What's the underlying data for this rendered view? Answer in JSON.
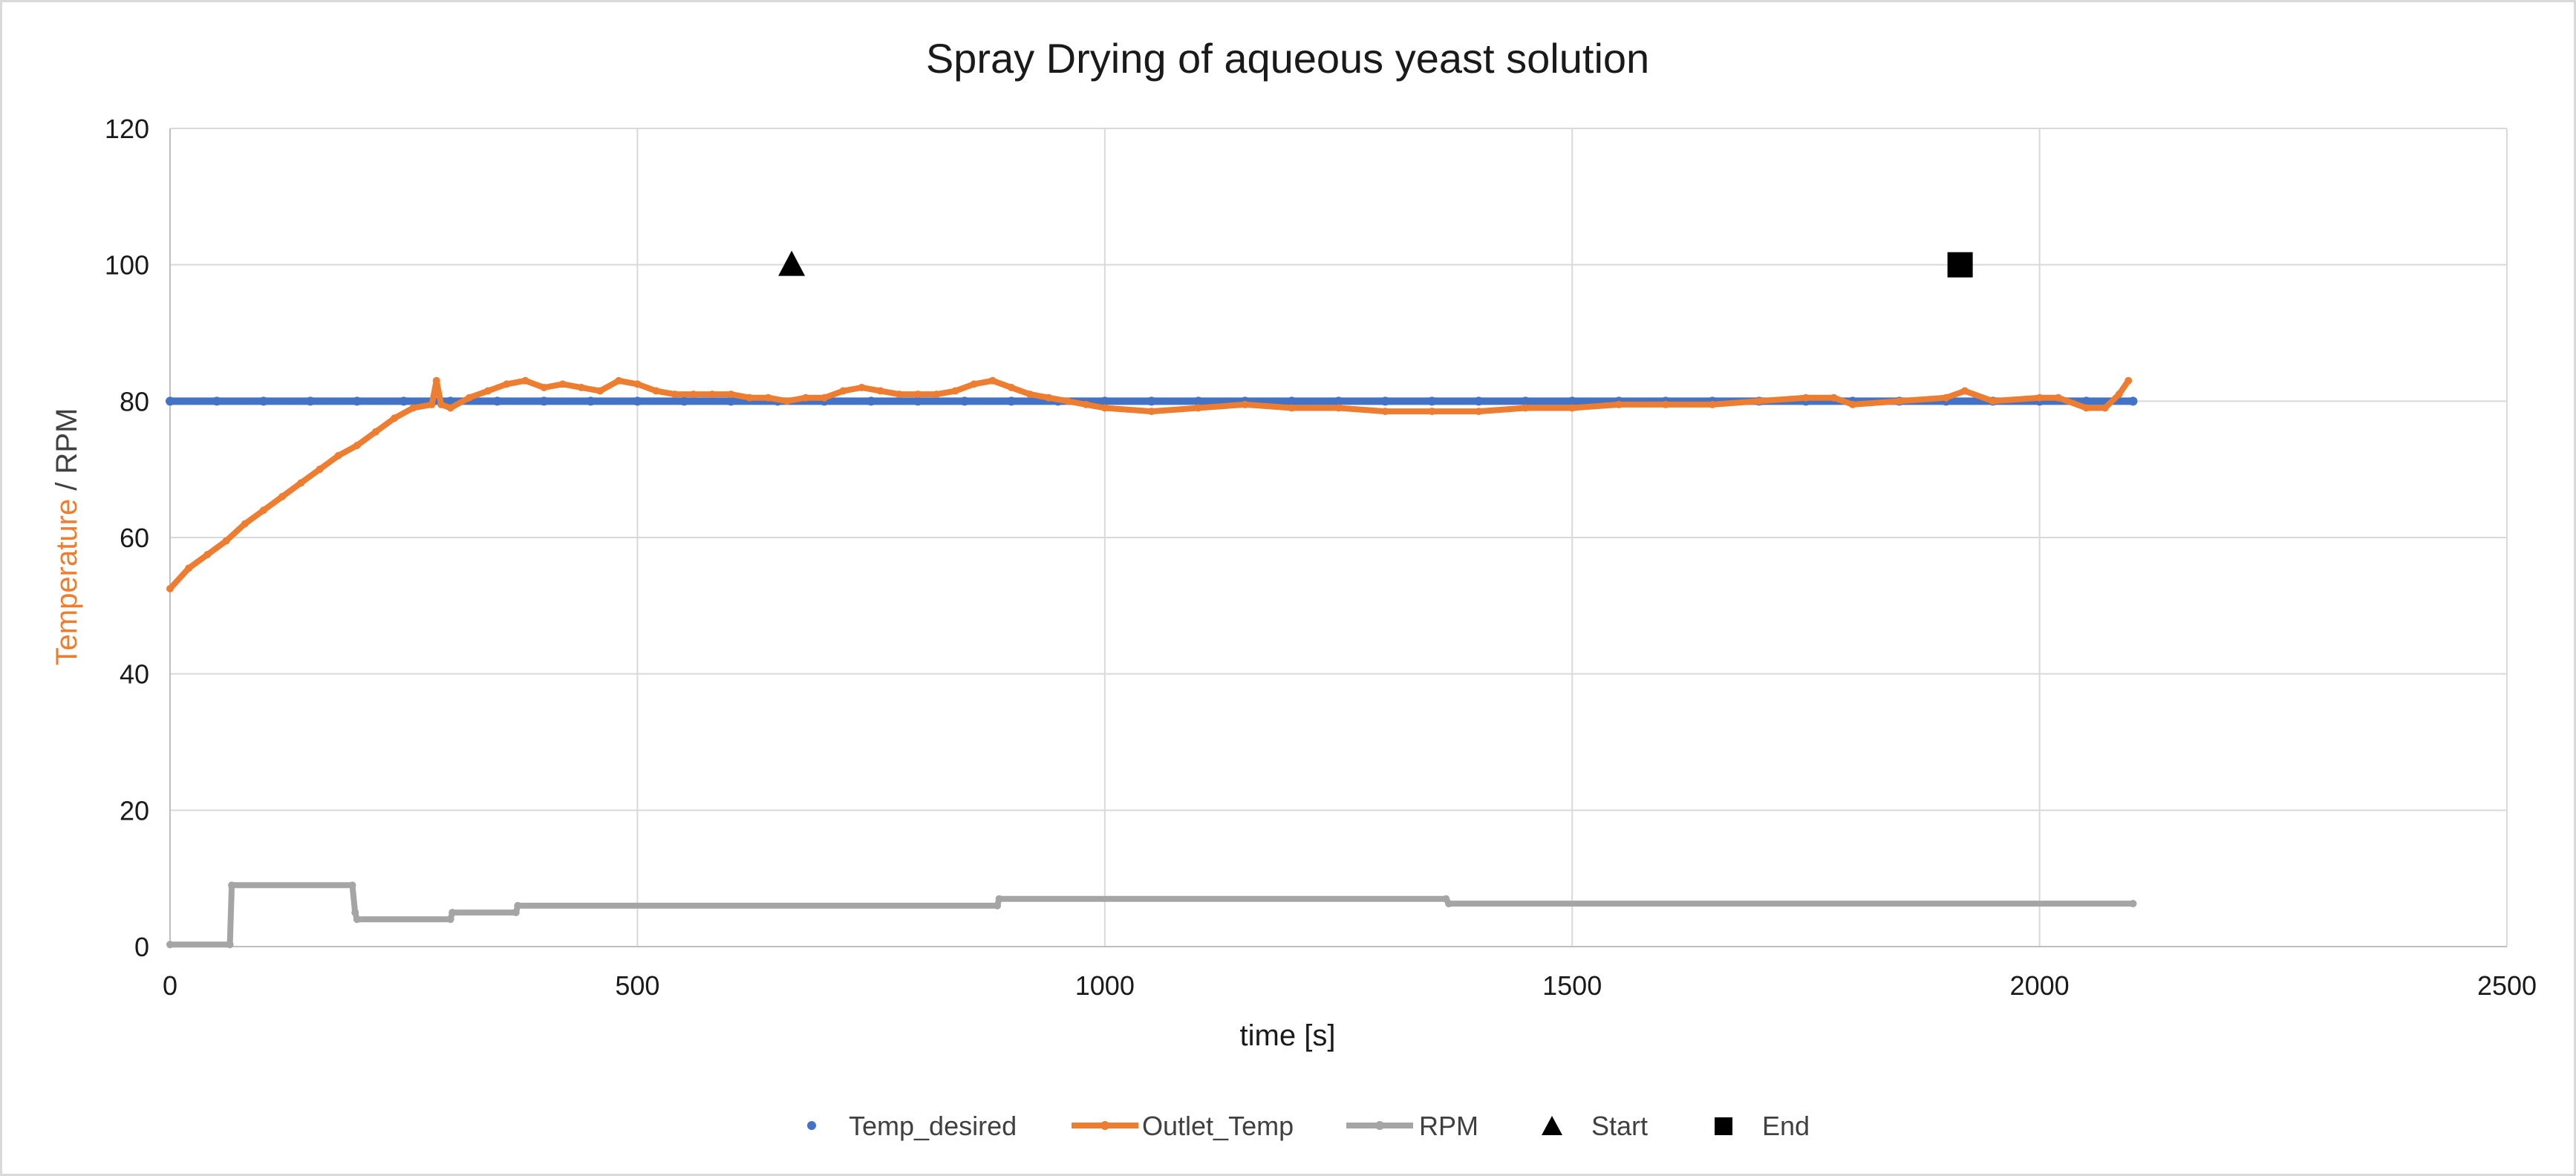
{
  "chart_data": {
    "type": "scatter",
    "title": "Spray Drying of aqueous yeast solution",
    "xlabel": "time [s]",
    "ylabel_part1": "Temperature",
    "ylabel_sep": " / ",
    "ylabel_part2": "RPM",
    "xlim": [
      0,
      2500
    ],
    "ylim": [
      0,
      120
    ],
    "x_ticks": [
      0,
      500,
      1000,
      1500,
      2000,
      2500
    ],
    "y_ticks": [
      0,
      20,
      40,
      60,
      80,
      100,
      120
    ],
    "grid": true,
    "legend_position": "bottom",
    "colors": {
      "temp_desired": "#4472C4",
      "outlet_temp": "#ED7D31",
      "rpm": "#A5A5A5",
      "markers": "#000000",
      "ylabel_temperature": "#ED7D31",
      "ylabel_rpm": "#404040"
    },
    "series": [
      {
        "name": "Temp_desired",
        "style": "dots",
        "x": [
          0,
          50,
          100,
          150,
          200,
          250,
          300,
          350,
          400,
          450,
          500,
          550,
          600,
          650,
          700,
          750,
          800,
          850,
          900,
          950,
          1000,
          1050,
          1100,
          1150,
          1200,
          1250,
          1300,
          1350,
          1400,
          1450,
          1500,
          1550,
          1600,
          1650,
          1700,
          1750,
          1800,
          1850,
          1900,
          1950,
          2000,
          2050,
          2100
        ],
        "y": [
          80,
          80,
          80,
          80,
          80,
          80,
          80,
          80,
          80,
          80,
          80,
          80,
          80,
          80,
          80,
          80,
          80,
          80,
          80,
          80,
          80,
          80,
          80,
          80,
          80,
          80,
          80,
          80,
          80,
          80,
          80,
          80,
          80,
          80,
          80,
          80,
          80,
          80,
          80,
          80,
          80,
          80,
          80
        ]
      },
      {
        "name": "Outlet_Temp",
        "style": "line-markers",
        "x": [
          0,
          20,
          40,
          60,
          80,
          100,
          120,
          140,
          160,
          180,
          200,
          220,
          240,
          260,
          280,
          285,
          290,
          300,
          320,
          340,
          360,
          380,
          400,
          420,
          440,
          460,
          480,
          500,
          520,
          540,
          560,
          580,
          600,
          620,
          640,
          660,
          680,
          700,
          720,
          740,
          760,
          780,
          800,
          820,
          840,
          860,
          880,
          900,
          920,
          940,
          960,
          980,
          1000,
          1050,
          1100,
          1150,
          1200,
          1250,
          1300,
          1350,
          1400,
          1450,
          1500,
          1550,
          1600,
          1650,
          1700,
          1750,
          1780,
          1800,
          1850,
          1900,
          1920,
          1950,
          2000,
          2020,
          2050,
          2070,
          2085,
          2095
        ],
        "y": [
          52.5,
          55.5,
          57.5,
          59.5,
          62,
          64,
          66,
          68,
          70,
          72,
          73.5,
          75.5,
          77.5,
          79,
          79.5,
          83,
          79.5,
          79,
          80.5,
          81.5,
          82.5,
          83,
          82,
          82.5,
          82,
          81.5,
          83,
          82.5,
          81.5,
          81,
          81,
          81,
          81,
          80.5,
          80.5,
          80,
          80.5,
          80.5,
          81.5,
          82,
          81.5,
          81,
          81,
          81,
          81.5,
          82.5,
          83,
          82,
          81,
          80.5,
          80,
          79.5,
          79,
          78.5,
          79,
          79.5,
          79,
          79,
          78.5,
          78.5,
          78.5,
          79,
          79,
          79.5,
          79.5,
          79.5,
          80,
          80.5,
          80.5,
          79.5,
          80,
          80.5,
          81.5,
          80,
          80.5,
          80.5,
          79,
          79,
          81,
          83
        ]
      },
      {
        "name": "RPM",
        "style": "line-markers",
        "x": [
          0,
          64,
          66,
          195,
          198,
          200,
          300,
          302,
          370,
          372,
          885,
          887,
          1365,
          1368,
          2100
        ],
        "y": [
          0.3,
          0.3,
          9,
          9,
          5,
          4,
          4,
          5,
          5,
          6,
          6,
          7,
          7,
          6.3,
          6.3
        ]
      },
      {
        "name": "Start",
        "style": "marker-triangle",
        "x": [
          665
        ],
        "y": [
          100
        ]
      },
      {
        "name": "End",
        "style": "marker-square",
        "x": [
          1915
        ],
        "y": [
          100
        ]
      }
    ]
  }
}
